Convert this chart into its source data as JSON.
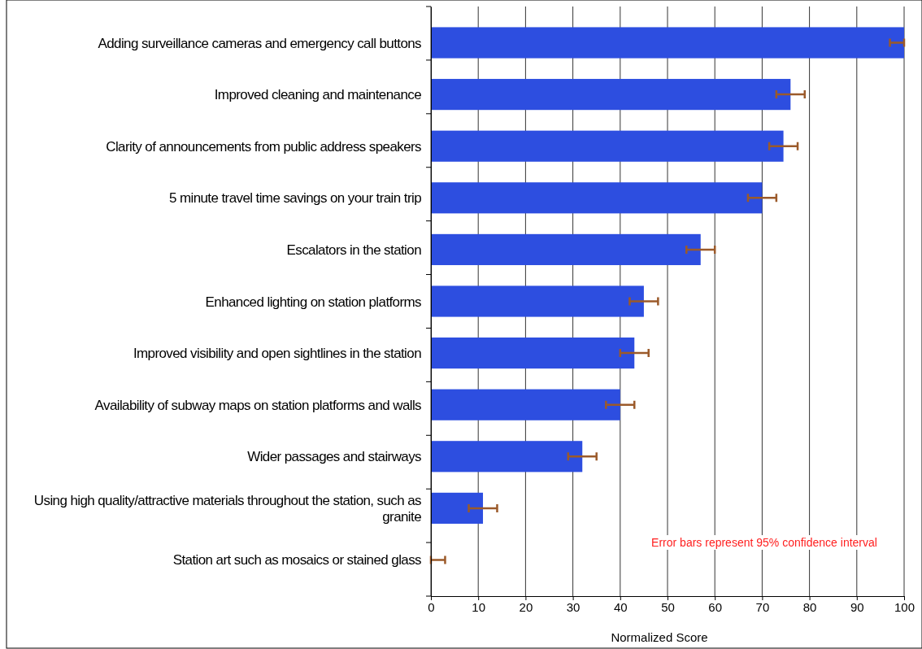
{
  "chart_data": {
    "type": "bar",
    "orientation": "horizontal",
    "xlabel": "Normalized Score",
    "categories": [
      "Adding surveillance cameras and emergency call buttons",
      "Improved cleaning and maintenance",
      "Clarity of announcements from public address speakers",
      "5 minute travel time savings on your train trip",
      "Escalators in the station",
      "Enhanced lighting on station platforms",
      "Improved visibility and open sightlines in the station",
      "Availability of subway maps on station platforms and walls",
      "Wider passages and stairways",
      "Using high quality/attractive materials throughout the station, such as granite",
      "Station art such as mosaics or stained glass"
    ],
    "values": [
      100,
      76,
      74.5,
      70,
      57,
      45,
      43,
      40,
      32,
      11,
      0
    ],
    "errors": [
      [
        97,
        100
      ],
      3,
      3,
      3,
      3,
      3,
      3,
      3,
      3,
      3,
      [
        0,
        3
      ]
    ],
    "color": "#2d4ee0",
    "xlim": [
      0,
      100
    ],
    "xticks": [
      0,
      10,
      20,
      30,
      40,
      50,
      60,
      70,
      80,
      90,
      100
    ],
    "grid": "x",
    "annotations": [
      "Error bars represent 95% confidence interval"
    ]
  }
}
